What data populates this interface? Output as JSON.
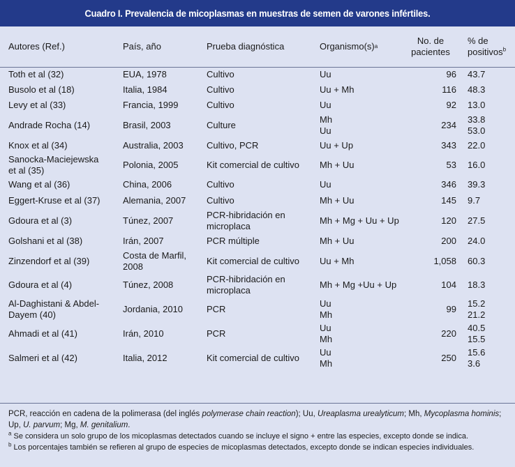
{
  "title": "Cuadro I. Prevalencia de micoplasmas en muestras de semen de varones infértiles.",
  "headers": {
    "autores": "Autores (Ref.)",
    "pais": "País, año",
    "prueba": "Prueba diagnóstica",
    "organismo": "Organismo(s)",
    "organismo_sup": "a",
    "pacientes_l1": "No. de",
    "pacientes_l2": "pacientes",
    "positivos_l1": "% de",
    "positivos_l2": "positivos",
    "positivos_sup": "b"
  },
  "rows": [
    {
      "autor": [
        "Toth et al (32)"
      ],
      "pais": [
        "EUA, 1978"
      ],
      "prueba": [
        "Cultivo"
      ],
      "org": [
        "Uu"
      ],
      "pac": "96",
      "pos": [
        "43.7"
      ]
    },
    {
      "autor": [
        "Busolo et al (18)"
      ],
      "pais": [
        "Italia, 1984"
      ],
      "prueba": [
        "Cultivo"
      ],
      "org": [
        "Uu + Mh"
      ],
      "pac": "116",
      "pos": [
        "48.3"
      ]
    },
    {
      "autor": [
        "Levy et al (33)"
      ],
      "pais": [
        "Francia, 1999"
      ],
      "prueba": [
        "Cultivo"
      ],
      "org": [
        "Uu"
      ],
      "pac": "92",
      "pos": [
        "13.0"
      ]
    },
    {
      "autor": [
        "Andrade Rocha (14)"
      ],
      "pais": [
        "Brasil, 2003"
      ],
      "prueba": [
        "Culture"
      ],
      "org": [
        "Mh",
        "Uu"
      ],
      "pac": "234",
      "pos": [
        "33.8",
        "53.0"
      ]
    },
    {
      "autor": [
        "Knox et al (34)"
      ],
      "pais": [
        "Australia, 2003"
      ],
      "prueba": [
        "Cultivo, PCR"
      ],
      "org": [
        "Uu + Up"
      ],
      "pac": "343",
      "pos": [
        "22.0"
      ]
    },
    {
      "autor": [
        "Sanocka-Maciejewska",
        "et al (35)"
      ],
      "pais": [
        "Polonia, 2005"
      ],
      "prueba": [
        "Kit comercial de cultivo"
      ],
      "org": [
        "Mh + Uu"
      ],
      "pac": "53",
      "pos": [
        "16.0"
      ]
    },
    {
      "autor": [
        "Wang et al (36)"
      ],
      "pais": [
        "China, 2006"
      ],
      "prueba": [
        "Cultivo"
      ],
      "org": [
        "Uu"
      ],
      "pac": "346",
      "pos": [
        "39.3"
      ]
    },
    {
      "autor": [
        "Eggert-Kruse et al (37)"
      ],
      "pais": [
        "Alemania, 2007"
      ],
      "prueba": [
        "Cultivo"
      ],
      "org": [
        "Mh + Uu"
      ],
      "pac": "145",
      "pos": [
        "9.7"
      ]
    },
    {
      "autor": [
        "Gdoura et al (3)"
      ],
      "pais": [
        "Túnez, 2007"
      ],
      "prueba": [
        "PCR-hibridación en",
        "microplaca"
      ],
      "org": [
        "Mh + Mg + Uu + Up"
      ],
      "pac": "120",
      "pos": [
        "27.5"
      ]
    },
    {
      "autor": [
        "Golshani et al (38)"
      ],
      "pais": [
        "Irán, 2007"
      ],
      "prueba": [
        "PCR múltiple"
      ],
      "org": [
        "Mh + Uu"
      ],
      "pac": "200",
      "pos": [
        "24.0"
      ]
    },
    {
      "autor": [
        "Zinzendorf et al (39)"
      ],
      "pais": [
        "Costa de Marfil,",
        "2008"
      ],
      "prueba": [
        "Kit comercial de cultivo"
      ],
      "org": [
        "Uu + Mh"
      ],
      "pac": "1,058",
      "pos": [
        "60.3"
      ]
    },
    {
      "autor": [
        "Gdoura et al (4)"
      ],
      "pais": [
        "Túnez, 2008"
      ],
      "prueba": [
        "PCR-hibridación en",
        "microplaca"
      ],
      "org": [
        "Mh + Mg +Uu + Up"
      ],
      "pac": "104",
      "pos": [
        "18.3"
      ]
    },
    {
      "autor": [
        "Al-Daghistani & Abdel-",
        "Dayem (40)"
      ],
      "pais": [
        "Jordania, 2010"
      ],
      "prueba": [
        "PCR"
      ],
      "org": [
        "Uu",
        "Mh"
      ],
      "pac": "99",
      "pos": [
        "15.2",
        "21.2"
      ]
    },
    {
      "autor": [
        "Ahmadi et al (41)"
      ],
      "pais": [
        "Irán, 2010"
      ],
      "prueba": [
        "PCR"
      ],
      "org": [
        "Uu",
        "Mh"
      ],
      "pac": "220",
      "pos": [
        "40.5",
        "15.5"
      ]
    },
    {
      "autor": [
        "Salmeri et al (42)"
      ],
      "pais": [
        "Italia, 2012"
      ],
      "prueba": [
        "Kit comercial de cultivo"
      ],
      "org": [
        "Uu",
        "Mh"
      ],
      "pac": "250",
      "pos": [
        "15.6",
        "3.6"
      ]
    }
  ],
  "footnotes": {
    "abbr": [
      {
        "t": "PCR, reacción en cadena de la polimerasa (del inglés ",
        "i": false
      },
      {
        "t": "polymerase chain reaction",
        "i": true
      },
      {
        "t": "); Uu, ",
        "i": false
      },
      {
        "t": "Ureaplasma urealyticum",
        "i": true
      },
      {
        "t": "; Mh, ",
        "i": false
      },
      {
        "t": "Mycoplasma hominis",
        "i": true
      },
      {
        "t": "; Up, ",
        "i": false
      },
      {
        "t": "U. parvum",
        "i": true
      },
      {
        "t": "; Mg, ",
        "i": false
      },
      {
        "t": "M. genitalium",
        "i": true
      },
      {
        "t": ".",
        "i": false
      }
    ],
    "a_mark": "a",
    "a_text": " Se considera un solo grupo de los micoplasmas detectados cuando se incluye el signo + entre las especies, excepto donde se indica.",
    "b_mark": "b",
    "b_text": " Los porcentajes también se refieren al grupo de especies de micoplasmas detectados, excepto donde se indican especies individuales."
  }
}
